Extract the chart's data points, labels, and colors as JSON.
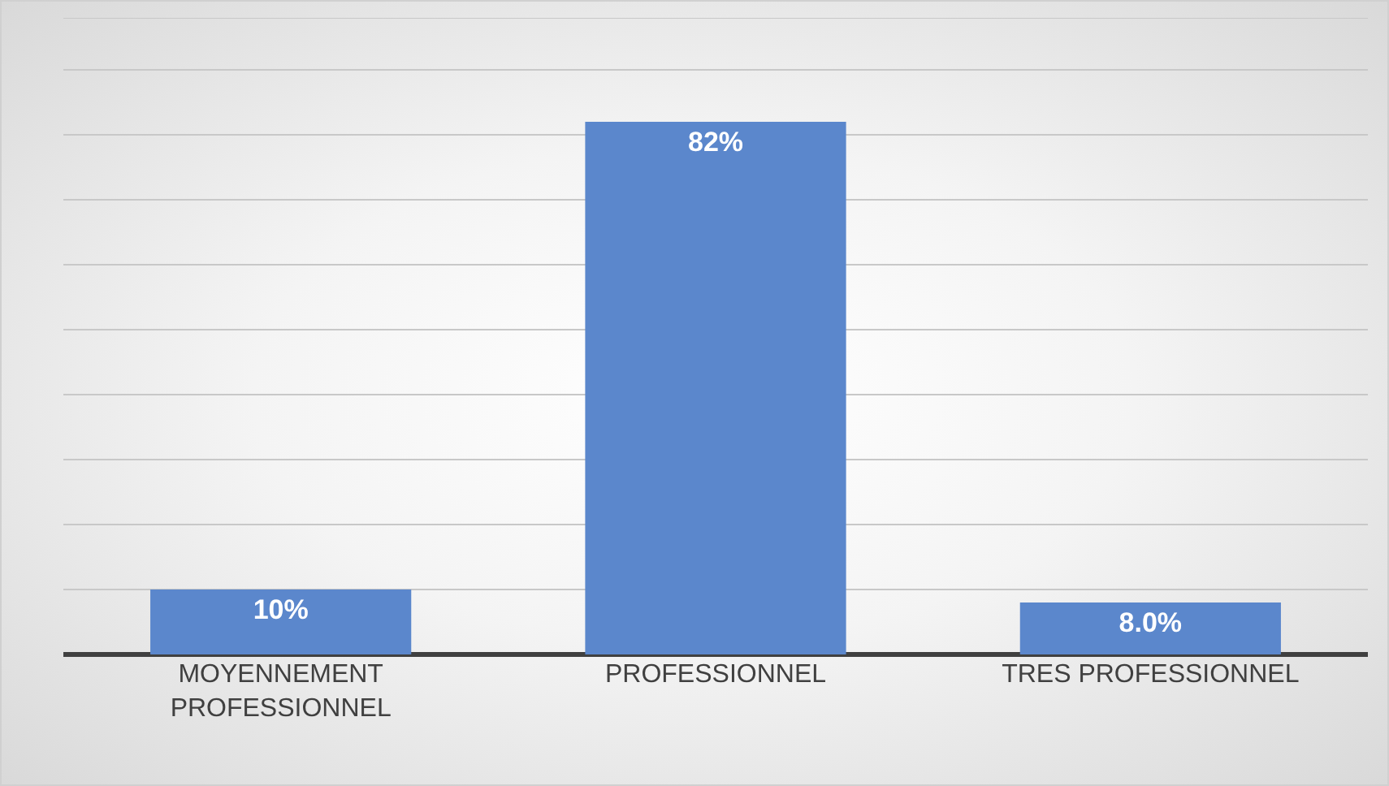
{
  "chart_data": {
    "type": "bar",
    "categories": [
      "MOYENNEMENT PROFESSIONNEL",
      "PROFESSIONNEL",
      "TRES PROFESSIONNEL"
    ],
    "values": [
      10,
      82,
      8.0
    ],
    "value_labels": [
      "10%",
      "82%",
      "8.0%"
    ],
    "color": "#5b87cc",
    "ylim": [
      0,
      98
    ],
    "yticks": [
      {
        "value": 0,
        "label": null
      },
      {
        "value": 10,
        "label": null
      },
      {
        "value": 20,
        "label": null
      },
      {
        "value": 30,
        "label": null
      },
      {
        "value": 40,
        "label": null
      },
      {
        "value": 50,
        "label": null
      },
      {
        "value": 60,
        "label": null
      },
      {
        "value": 70,
        "label": null
      },
      {
        "value": 80,
        "label": null
      },
      {
        "value": 90,
        "label": null
      }
    ],
    "grid": "y",
    "legend": false,
    "tick_labels": "x"
  }
}
